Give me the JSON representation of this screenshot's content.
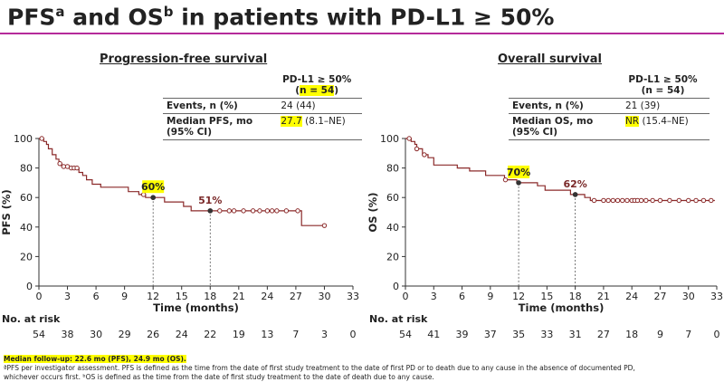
{
  "title": {
    "pfs": "PFS",
    "pfs_sup": "a",
    "and": " and ",
    "os": "OS",
    "os_sup": "b",
    "rest": " in patients with PD-L1 ≥ 50%"
  },
  "colors": {
    "curve": "#8b2a2a",
    "accent": "#b52a9a",
    "highlight": "#ffff00"
  },
  "panels": [
    {
      "id": "pfs",
      "title": "Progression-free survival",
      "table": {
        "header_line1": "PD-L1 ≥ 50%",
        "header_open": "(",
        "header_n": "n = 54",
        "header_close": ")",
        "events_label": "Events, n (%)",
        "events_value": "24 (44)",
        "median_label": "Median PFS, mo",
        "median_label2": "(95% CI)",
        "median_value": "27.7",
        "median_ci": " (8.1–NE)"
      }
    },
    {
      "id": "os",
      "title": "Overall survival",
      "table": {
        "header_line1": "PD-L1 ≥ 50%",
        "header_n": "(n = 54)",
        "events_label": "Events, n (%)",
        "events_value": "21 (39)",
        "median_label": "Median OS, mo",
        "median_label2": "(95% CI)",
        "median_value": "NR",
        "median_ci": " (15.4–NE)"
      }
    }
  ],
  "risk_label": "No. at risk",
  "chart_data": [
    {
      "type": "line",
      "title": "Progression-free survival",
      "xlabel": "Time (months)",
      "ylabel": "PFS (%)",
      "xlim": [
        0,
        33
      ],
      "ylim": [
        0,
        100
      ],
      "xticks": [
        0,
        3,
        6,
        9,
        12,
        15,
        18,
        21,
        24,
        27,
        30,
        33
      ],
      "yticks": [
        0,
        20,
        40,
        60,
        80,
        100
      ],
      "step_points": [
        [
          0,
          100
        ],
        [
          0.5,
          100
        ],
        [
          0.5,
          98
        ],
        [
          0.8,
          98
        ],
        [
          0.8,
          96
        ],
        [
          1.0,
          96
        ],
        [
          1.0,
          93
        ],
        [
          1.4,
          93
        ],
        [
          1.4,
          89
        ],
        [
          1.8,
          89
        ],
        [
          1.8,
          86
        ],
        [
          2.1,
          86
        ],
        [
          2.1,
          83
        ],
        [
          2.4,
          83
        ],
        [
          2.4,
          81
        ],
        [
          3.2,
          81
        ],
        [
          3.2,
          80
        ],
        [
          4.2,
          80
        ],
        [
          4.2,
          77
        ],
        [
          4.6,
          77
        ],
        [
          4.6,
          75
        ],
        [
          5.0,
          75
        ],
        [
          5.0,
          72
        ],
        [
          5.6,
          72
        ],
        [
          5.6,
          69
        ],
        [
          6.5,
          69
        ],
        [
          6.5,
          67
        ],
        [
          9.4,
          67
        ],
        [
          9.4,
          64
        ],
        [
          10.5,
          64
        ],
        [
          10.5,
          62
        ],
        [
          11.2,
          62
        ],
        [
          11.2,
          60
        ],
        [
          13.2,
          60
        ],
        [
          13.2,
          57
        ],
        [
          15.2,
          57
        ],
        [
          15.2,
          54
        ],
        [
          16.0,
          54
        ],
        [
          16.0,
          51
        ],
        [
          27.6,
          51
        ],
        [
          27.6,
          41
        ],
        [
          30.0,
          41
        ]
      ],
      "censor_x": [
        0.3,
        2.2,
        2.6,
        3.0,
        3.4,
        3.7,
        4.0,
        11.0,
        12.0,
        18.0,
        19.0,
        20.0,
        20.5,
        21.5,
        22.5,
        23.2,
        24.0,
        24.5,
        25.0,
        26.0,
        27.2,
        30.0
      ],
      "annotations": [
        {
          "x": 12,
          "y": 60,
          "label": "60%",
          "highlight": true
        },
        {
          "x": 18,
          "y": 51,
          "label": "51%",
          "highlight": false
        }
      ],
      "at_risk": [
        54,
        38,
        30,
        29,
        26,
        24,
        22,
        19,
        13,
        7,
        3,
        0
      ]
    },
    {
      "type": "line",
      "title": "Overall survival",
      "xlabel": "Time (months)",
      "ylabel": "OS (%)",
      "xlim": [
        0,
        33
      ],
      "ylim": [
        0,
        100
      ],
      "xticks": [
        0,
        3,
        6,
        9,
        12,
        15,
        18,
        21,
        24,
        27,
        30,
        33
      ],
      "yticks": [
        0,
        20,
        40,
        60,
        80,
        100
      ],
      "step_points": [
        [
          0,
          100
        ],
        [
          0.6,
          100
        ],
        [
          0.6,
          98
        ],
        [
          1.0,
          98
        ],
        [
          1.0,
          96
        ],
        [
          1.2,
          96
        ],
        [
          1.2,
          93
        ],
        [
          1.8,
          93
        ],
        [
          1.8,
          89
        ],
        [
          2.4,
          89
        ],
        [
          2.4,
          87
        ],
        [
          3.0,
          87
        ],
        [
          3.0,
          82
        ],
        [
          5.5,
          82
        ],
        [
          5.5,
          80
        ],
        [
          6.8,
          80
        ],
        [
          6.8,
          78
        ],
        [
          8.5,
          78
        ],
        [
          8.5,
          75
        ],
        [
          10.5,
          75
        ],
        [
          10.5,
          72
        ],
        [
          11.8,
          72
        ],
        [
          11.8,
          70
        ],
        [
          14.0,
          70
        ],
        [
          14.0,
          68
        ],
        [
          14.8,
          68
        ],
        [
          14.8,
          65
        ],
        [
          17.5,
          65
        ],
        [
          17.5,
          62
        ],
        [
          19.0,
          62
        ],
        [
          19.0,
          60
        ],
        [
          19.6,
          60
        ],
        [
          19.6,
          58
        ],
        [
          32.8,
          58
        ]
      ],
      "censor_x": [
        0.4,
        1.2,
        2.0,
        10.6,
        18.0,
        20.0,
        21.0,
        21.5,
        22.0,
        22.5,
        23.0,
        23.5,
        24.0,
        24.3,
        24.6,
        25.0,
        25.5,
        26.2,
        27.0,
        28.0,
        29.0,
        30.0,
        30.8,
        31.6,
        32.4
      ],
      "annotations": [
        {
          "x": 12,
          "y": 70,
          "label": "70%",
          "highlight": true
        },
        {
          "x": 18,
          "y": 62,
          "label": "62%",
          "highlight": false
        }
      ],
      "at_risk": [
        54,
        41,
        39,
        37,
        35,
        33,
        31,
        27,
        18,
        9,
        7,
        0
      ]
    }
  ],
  "footer": {
    "followup": "Median follow-up: 22.6 mo (PFS), 24.9 mo (OS).",
    "note_a": "ªPFS per investigator assessment. PFS is defined as the time from the date of first study treatment to the date of first PD or to death due to any cause in the absence of documented PD,",
    "note_b": "whichever occurs first. ᵇOS is defined as the time from the date of first study treatment to the date of death due to any cause."
  }
}
